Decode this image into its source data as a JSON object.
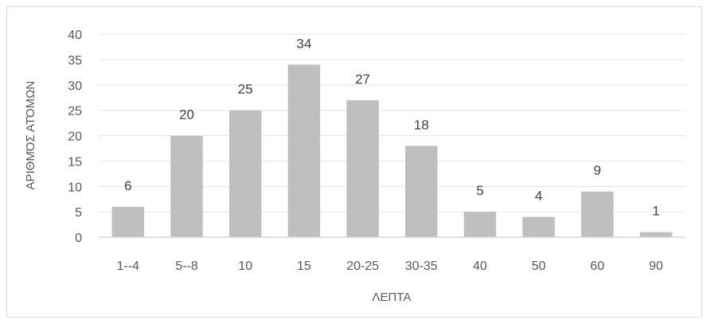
{
  "chart_data": {
    "type": "bar",
    "title": "",
    "xlabel": "ΛΕΠΤΑ",
    "ylabel": "ΑΡΙΘΜΌΣ ΑΤΌΜΩΝ",
    "categories": [
      "1--4",
      "5--8",
      "10",
      "15",
      "20-25",
      "30-35",
      "40",
      "50",
      "60",
      "90"
    ],
    "values": [
      6,
      20,
      25,
      34,
      27,
      18,
      5,
      4,
      9,
      1
    ],
    "ylim": [
      0,
      40
    ],
    "yticks": [
      0,
      5,
      10,
      15,
      20,
      25,
      30,
      35,
      40
    ],
    "grid": true,
    "legend": "none",
    "bar_color": "#bfbfbf",
    "grid_color": "#e6e6e6",
    "axis_color": "#d9d9d9"
  }
}
